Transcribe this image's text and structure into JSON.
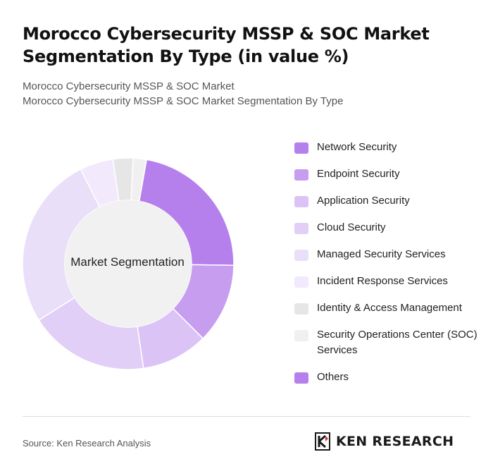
{
  "header": {
    "title": "Morocco Cybersecurity MSSP & SOC Market Segmentation By Type (in value %)",
    "subtitle_line1": "Morocco Cybersecurity MSSP & SOC Market",
    "subtitle_line2": "Morocco Cybersecurity MSSP & SOC Market Segmentation By Type"
  },
  "chart_data": {
    "type": "pie",
    "donut": true,
    "center_label": "Market Segmentation",
    "categories": [
      "Network Security",
      "Endpoint Security",
      "Application Security",
      "Cloud Security",
      "Managed Security Services",
      "Incident Response Services",
      "Identity & Access Management",
      "Security Operations Center (SOC) Services",
      "Others"
    ],
    "values": [
      22,
      12,
      10,
      18,
      26,
      5,
      3,
      2,
      0
    ],
    "colors": [
      "#b580ec",
      "#c79df0",
      "#dcc3f6",
      "#e2cff7",
      "#eadff9",
      "#f2eafc",
      "#e6e6e6",
      "#f0f0f0",
      "#b580ec"
    ],
    "legend_position": "right"
  },
  "footer": {
    "source": "Source: Ken Research Analysis",
    "logo_text": "KEN RESEARCH"
  }
}
